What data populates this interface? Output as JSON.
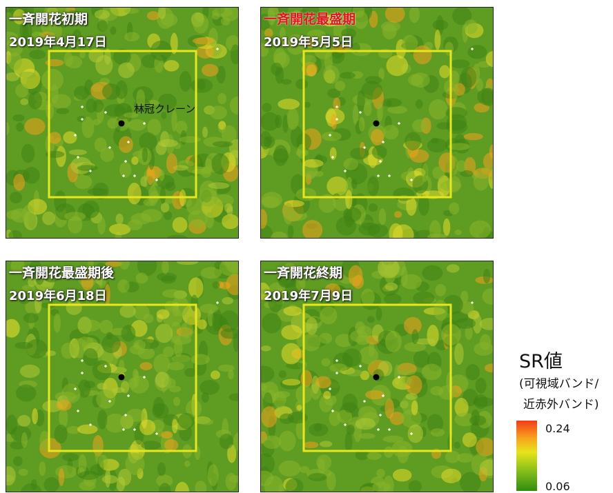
{
  "panels": [
    {
      "title": "一斉開花初期",
      "date": "2019年4月17日"
    },
    {
      "title": "一斉開花最盛期",
      "date": "2019年5月5日"
    },
    {
      "title": "一斉開花最盛期後",
      "date": "2019年6月18日"
    },
    {
      "title": "一斉開花終期",
      "date": "2019年7月9日"
    }
  ],
  "annotation": "林冠クレーン",
  "legend": {
    "title": "SR値",
    "subtitle": [
      "(可視域バンド/",
      "近赤外バンド)"
    ],
    "max": 0.24,
    "min": 0.06
  }
}
